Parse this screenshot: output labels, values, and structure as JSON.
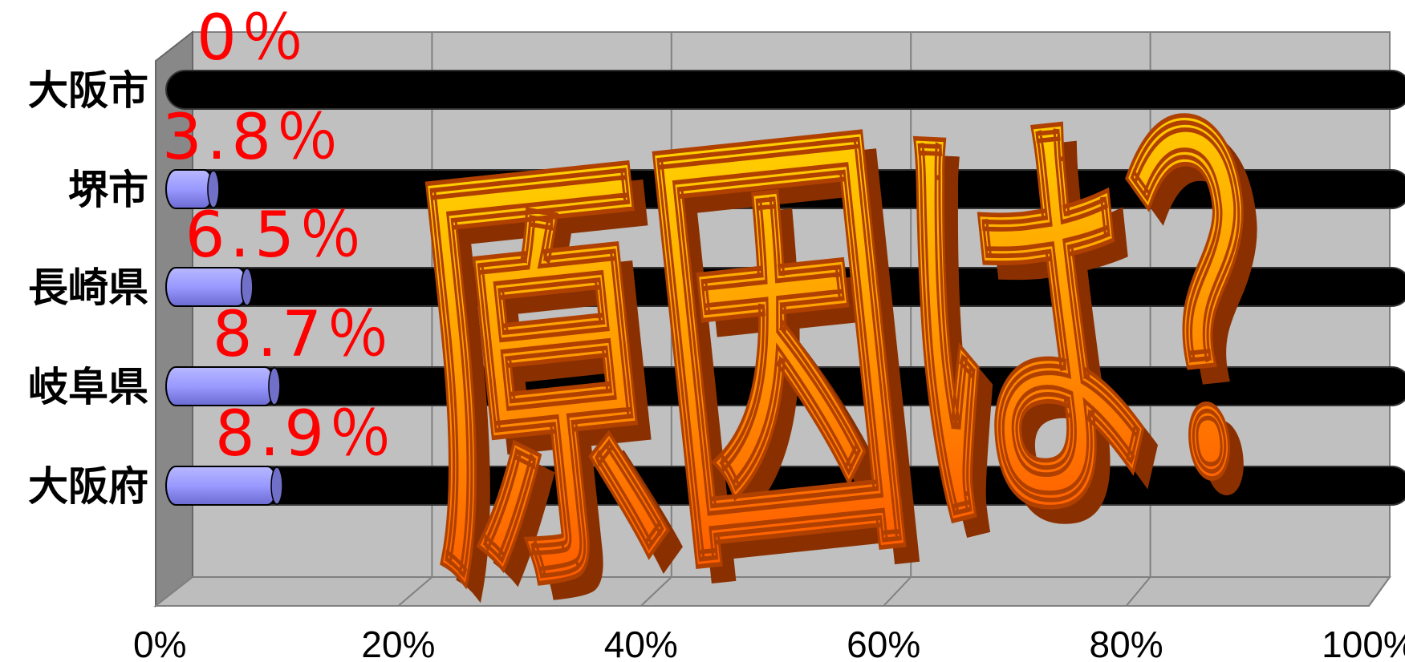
{
  "chart_data": {
    "type": "bar",
    "orientation": "horizontal",
    "style": "3d-cylinder-stacked-100",
    "categories": [
      "大阪市",
      "堺市",
      "長崎県",
      "岐阜県",
      "大阪府"
    ],
    "values": [
      0,
      3.8,
      6.5,
      8.7,
      8.9
    ],
    "data_labels": [
      "0％",
      "3.8％",
      "6.5％",
      "8.7％",
      "8.9％"
    ],
    "x_ticks": [
      "0%",
      "20%",
      "40%",
      "60%",
      "80%",
      "100%"
    ],
    "xlim": [
      0,
      100
    ],
    "grid": true,
    "legend": "none",
    "overlay_text": "原因は？",
    "colors": {
      "value_bar": "#9999ff",
      "remainder_bar": "#000000",
      "data_label": "#ff0000",
      "plot_wall": "#c0c0c0",
      "side_wall": "#808080",
      "overlay_top": "#ffe000",
      "overlay_bottom": "#ff4a00"
    }
  }
}
